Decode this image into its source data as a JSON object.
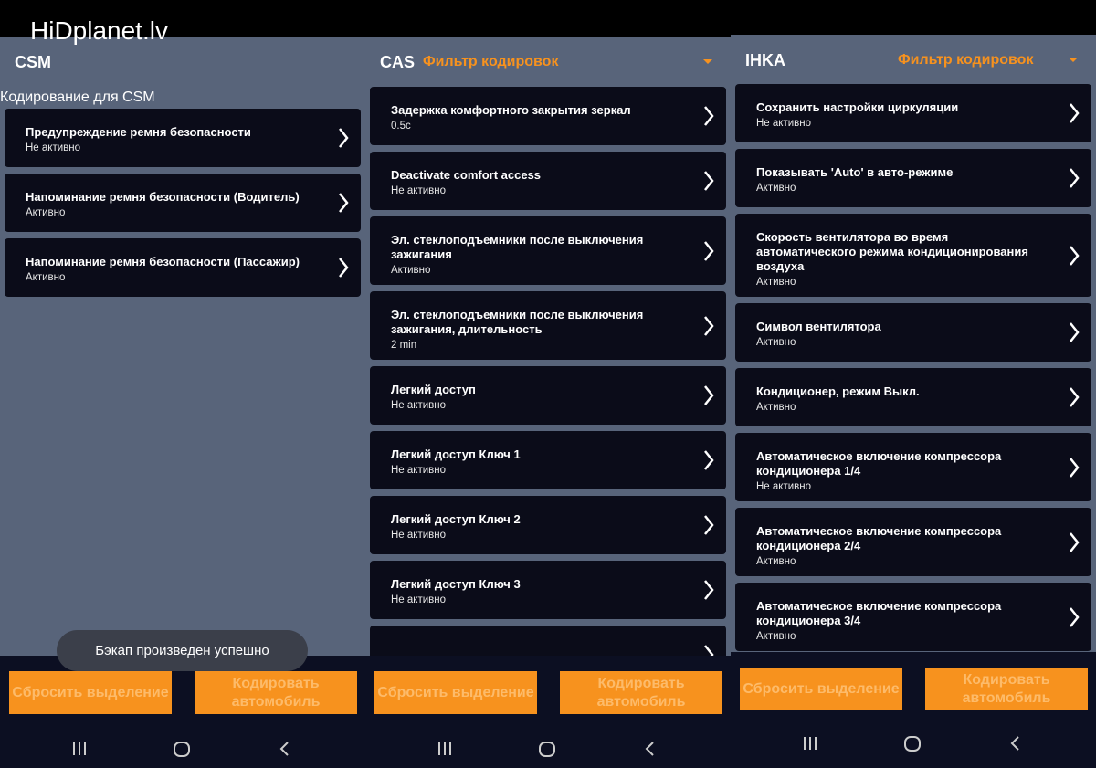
{
  "watermark": "HiDplanet.lv",
  "panels": [
    {
      "title": "CSM",
      "subtitle": "Кодирование для CSM",
      "items": [
        {
          "title": "Предупреждение ремня безопасности",
          "status": "Не активно"
        },
        {
          "title": "Напоминание ремня безопасности (Водитель)",
          "status": "Активно"
        },
        {
          "title": "Напоминание ремня безопасности (Пассажир)",
          "status": "Активно"
        }
      ],
      "toast": "Бэкап произведен успешно",
      "buttons": [
        "Сбросить выделение",
        "Кодировать автомобиль"
      ]
    },
    {
      "title": "CAS",
      "filter": "Фильтр кодировок",
      "items": [
        {
          "title": "Задержка комфортного закрытия зеркал",
          "status": "0.5с"
        },
        {
          "title": "Deactivate comfort access",
          "status": "Не активно"
        },
        {
          "title": "Эл. стеклоподъемники после выключения зажигания",
          "status": "Активно"
        },
        {
          "title": "Эл. стеклоподъемники после выключения зажигания, длительность",
          "status": "2 min"
        },
        {
          "title": "Легкий доступ",
          "status": "Не активно"
        },
        {
          "title": "Легкий доступ Ключ 1",
          "status": "Не активно"
        },
        {
          "title": "Легкий доступ Ключ 2",
          "status": "Не активно"
        },
        {
          "title": "Легкий доступ Ключ 3",
          "status": "Не активно"
        }
      ],
      "buttons": [
        "Сбросить выделение",
        "Кодировать автомобиль"
      ]
    },
    {
      "title": "IHKA",
      "filter": "Фильтр кодировок",
      "items": [
        {
          "title": "Сохранить настройки циркуляции",
          "status": "Не активно"
        },
        {
          "title": "Показывать 'Auto' в авто-режиме",
          "status": "Активно"
        },
        {
          "title": "Скорость вентилятора во время автоматического режима кондиционирования воздуха",
          "status": "Активно"
        },
        {
          "title": "Символ вентилятора",
          "status": "Активно"
        },
        {
          "title": "Кондиционер, режим Выкл.",
          "status": "Активно"
        },
        {
          "title": "Автоматическое включение компрессора кондиционера 1/4",
          "status": "Не активно"
        },
        {
          "title": "Автоматическое включение компрессора кондиционера 2/4",
          "status": "Активно"
        },
        {
          "title": "Автоматическое включение компрессора кондиционера 3/4",
          "status": "Активно"
        }
      ],
      "buttons": [
        "Сбросить выделение",
        "Кодировать автомобиль"
      ]
    }
  ]
}
